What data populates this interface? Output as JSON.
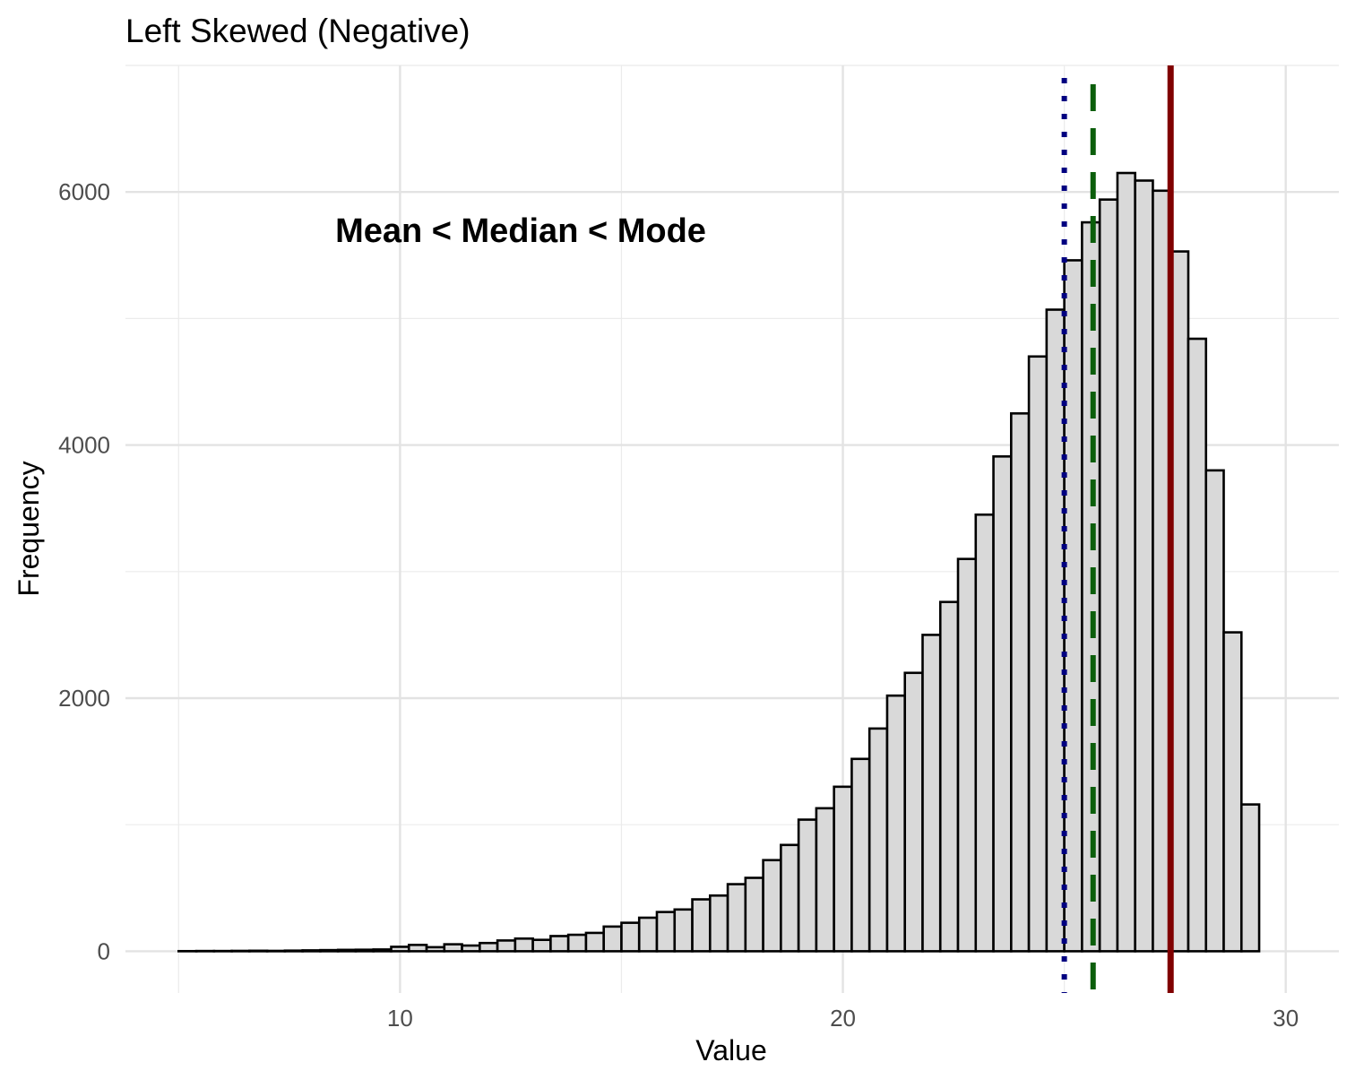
{
  "chart_data": {
    "type": "bar",
    "title": "Left Skewed (Negative)",
    "xlabel": "Value",
    "ylabel": "Frequency",
    "annotation": "Mean < Median < Mode",
    "x_ticks": [
      10,
      20,
      30
    ],
    "y_ticks": [
      0,
      2000,
      4000,
      6000
    ],
    "grid": true,
    "bin_width": 0.4,
    "bin_start": 5.0,
    "values": [
      1,
      2,
      2,
      3,
      4,
      3,
      5,
      7,
      9,
      11,
      12,
      14,
      35,
      50,
      32,
      55,
      45,
      65,
      85,
      100,
      90,
      120,
      130,
      145,
      195,
      225,
      265,
      310,
      330,
      410,
      440,
      530,
      580,
      720,
      840,
      1040,
      1130,
      1300,
      1520,
      1760,
      2020,
      2200,
      2500,
      2760,
      3100,
      3450,
      3910,
      4250,
      4700,
      5070,
      5460,
      5760,
      5940,
      6150,
      6090,
      6010,
      5530,
      4840,
      3800,
      2520,
      1160
    ],
    "reference_lines": [
      {
        "name": "Mean",
        "x": 25.0,
        "color": "#000080",
        "style": "dotted"
      },
      {
        "name": "Median",
        "x": 25.65,
        "color": "#0b5e0b",
        "style": "dashed"
      },
      {
        "name": "Mode",
        "x": 27.4,
        "color": "#800000",
        "style": "solid"
      }
    ],
    "bar_fill": "#d9d9d9",
    "bar_stroke": "#000000",
    "xlim": [
      3.8,
      31.2
    ],
    "ylim": [
      -330,
      7000
    ]
  }
}
